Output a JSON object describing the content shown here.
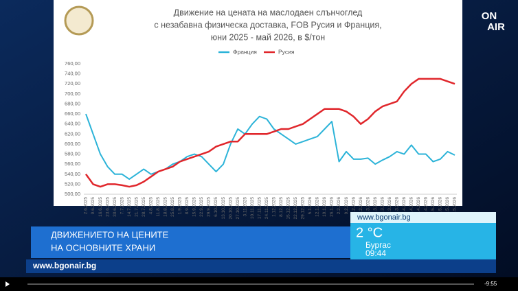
{
  "chart_data": {
    "type": "line",
    "title_lines": [
      "Движение на цената на маслодаен слънчоглед",
      "с незабавна физическа доставка, FOB Русия и Франция,",
      "юни 2025 - май 2026, в $/тон"
    ],
    "categories": [
      "2.6.2025",
      "9.6.2025",
      "16.6.2025",
      "23.6.2025",
      "30.6.2025",
      "7.7.2025",
      "14.7.2025",
      "21.7.2025",
      "28.7.2025",
      "4.8.2025",
      "11.8.2025",
      "18.8.2025",
      "25.8.2025",
      "1.9.2025",
      "8.9.2025",
      "15.9.2025",
      "22.9.2025",
      "29.9.2025",
      "6.10.2025",
      "13.10.2025",
      "20.10.2025",
      "27.10.2025",
      "3.11.2025",
      "10.11.2025",
      "17.11.2025",
      "24.11.2025",
      "1.12.2025",
      "8.12.2025",
      "15.12.2025",
      "22.12.2025",
      "29.12.2025",
      "5.1.2026",
      "12.1.2026",
      "19.1.2026",
      "26.1.2026",
      "2.2.2026",
      "9.2.2026",
      "16.2.2026",
      "23.2.2026",
      "2.3.2026",
      "9.3.2026",
      "16.3.2026",
      "23.3.2026",
      "30.3.2026",
      "6.4.2026",
      "13.4.2026",
      "20.4.2026",
      "27.4.2026",
      "4.5.2026",
      "11.5.2026",
      "18.5.2026",
      "25.5.2026"
    ],
    "series": [
      {
        "name": "Франция",
        "color": "#2bb3d8",
        "values": [
          660,
          620,
          580,
          555,
          540,
          540,
          530,
          540,
          550,
          540,
          545,
          550,
          560,
          565,
          575,
          580,
          575,
          560,
          545,
          560,
          600,
          630,
          620,
          640,
          655,
          650,
          630,
          620,
          610,
          600,
          605,
          610,
          615,
          630,
          645,
          565,
          585,
          570,
          570,
          572,
          560,
          568,
          575,
          585,
          580,
          598,
          580,
          580,
          565,
          570,
          585,
          578
        ]
      },
      {
        "name": "Русия",
        "color": "#e0262b",
        "values": [
          540,
          520,
          515,
          520,
          520,
          518,
          515,
          518,
          525,
          535,
          545,
          550,
          555,
          565,
          570,
          575,
          580,
          585,
          595,
          600,
          605,
          605,
          620,
          620,
          620,
          620,
          625,
          630,
          630,
          635,
          640,
          650,
          660,
          670,
          670,
          670,
          665,
          655,
          640,
          650,
          665,
          675,
          680,
          685,
          705,
          720,
          730,
          730,
          730,
          730,
          725,
          720
        ]
      }
    ],
    "ylim": [
      500,
      760
    ],
    "yticks": [
      {
        "value": 500,
        "label": "500,00"
      },
      {
        "value": 520,
        "label": "520,00"
      },
      {
        "value": 540,
        "label": "540,00"
      },
      {
        "value": 560,
        "label": "560,00"
      },
      {
        "value": 580,
        "label": "580,00"
      },
      {
        "value": 600,
        "label": "600,00"
      },
      {
        "value": 620,
        "label": "620,00"
      },
      {
        "value": 640,
        "label": "640,00"
      },
      {
        "value": 660,
        "label": "660,00"
      },
      {
        "value": 680,
        "label": "680,00"
      },
      {
        "value": 700,
        "label": "700,00"
      },
      {
        "value": 720,
        "label": "720,00"
      },
      {
        "value": 740,
        "label": "740,00"
      },
      {
        "value": 760,
        "label": "760,00"
      }
    ],
    "grid": false,
    "legend": "top"
  },
  "overlay": {
    "logo": [
      "ON",
      "AIR"
    ],
    "headline": [
      "ДВИЖЕНИЕТО НА ЦЕНИТЕ",
      "НА ОСНОВНИТЕ ХРАНИ"
    ],
    "weather": {
      "site": "www.bgonair.bg",
      "temp": "2 °C",
      "city": "Бургас",
      "time": "09:44"
    },
    "footer": "www.bgonair.bg",
    "remaining": "-9:55"
  }
}
